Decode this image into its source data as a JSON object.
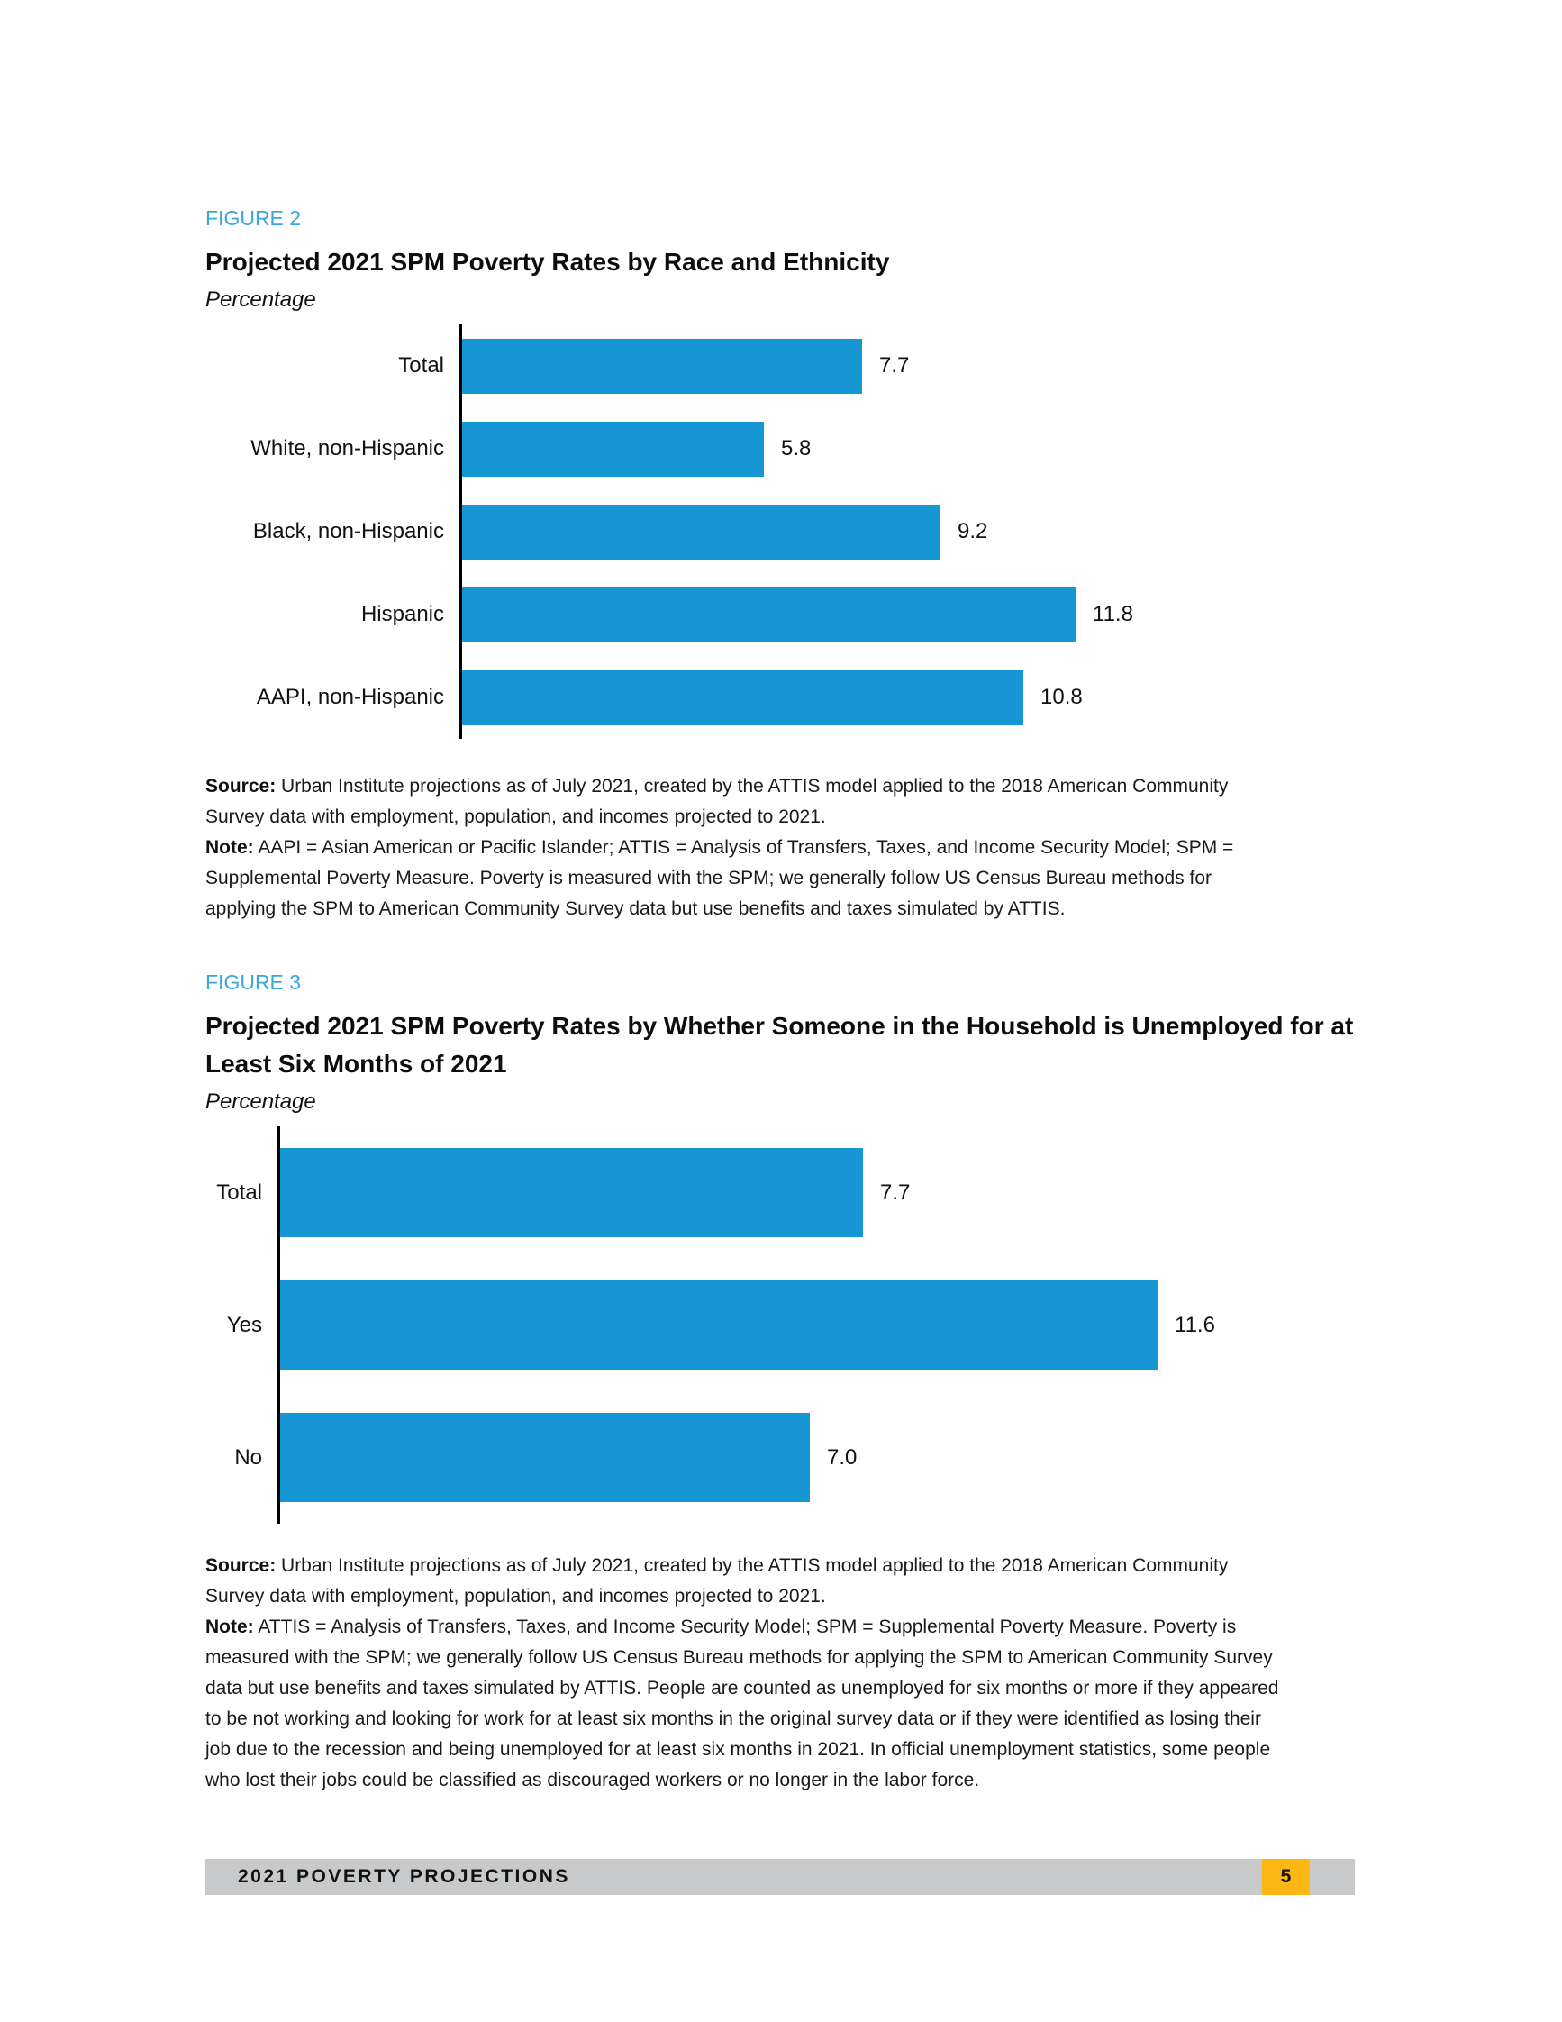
{
  "colors": {
    "bar_blue": "#1696d2",
    "figure_label_blue": "#3ba7dd",
    "footer_gray": "#c8c9ca",
    "page_badge_yellow": "#fdb714",
    "axis_black": "#000000"
  },
  "figures": {
    "fig2": {
      "label": "FIGURE 2",
      "title_lines": [
        "Projected 2021 SPM Poverty Rates by Race and Ethnicity"
      ],
      "subtitle": "Percentage",
      "notes": [
        {
          "b": "Source:",
          "t": " Urban Institute projections as of July 2021, created by the ATTIS model applied to the 2018 American Community"
        },
        {
          "b": "",
          "t": "Survey data with employment, population, and incomes projected to 2021."
        },
        {
          "b": "Note:",
          "t": " AAPI = Asian American or Pacific Islander; ATTIS = Analysis of Transfers, Taxes, and Income Security Model; SPM ="
        },
        {
          "b": "",
          "t": "Supplemental Poverty Measure. Poverty is measured with the SPM; we generally follow US Census Bureau methods for"
        },
        {
          "b": "",
          "t": "applying the SPM to American Community Survey data but use benefits and taxes simulated by ATTIS."
        }
      ]
    },
    "fig3": {
      "label": "FIGURE 3",
      "title_lines": [
        "Projected 2021 SPM Poverty Rates by Whether Someone in the Household is Unemployed for at",
        "Least Six Months of 2021"
      ],
      "subtitle": "Percentage",
      "notes": [
        {
          "b": "Source:",
          "t": " Urban Institute projections as of July 2021, created by the ATTIS model applied to the 2018 American Community"
        },
        {
          "b": "",
          "t": "Survey data with employment, population, and incomes projected to 2021."
        },
        {
          "b": "Note:",
          "t": " ATTIS = Analysis of Transfers, Taxes, and Income Security Model; SPM = Supplemental Poverty Measure. Poverty is"
        },
        {
          "b": "",
          "t": "measured with the SPM; we generally follow US Census Bureau methods for applying the SPM to American Community Survey"
        },
        {
          "b": "",
          "t": "data but use benefits and taxes simulated by ATTIS. People are counted as unemployed for six months or more if they appeared"
        },
        {
          "b": "",
          "t": "to be not working and looking for work for at least six months in the original survey data or if they were identified as losing their"
        },
        {
          "b": "",
          "t": "job due to the recession and being unemployed for at least six months in 2021. In official unemployment statistics, some people"
        },
        {
          "b": "",
          "t": "who lost their jobs could be classified as discouraged workers or no longer in the labor force."
        }
      ]
    }
  },
  "chart_data": [
    {
      "type": "bar",
      "orientation": "horizontal",
      "title": "Projected 2021 SPM Poverty Rates by Race and Ethnicity",
      "subtitle": "Percentage",
      "categories": [
        "Total",
        "White, non-Hispanic",
        "Black, non-Hispanic",
        "Hispanic",
        "AAPI, non-Hispanic"
      ],
      "values": [
        7.7,
        5.8,
        9.2,
        11.8,
        10.8
      ],
      "value_labels": [
        "7.7",
        "5.8",
        "9.2",
        "11.8",
        "10.8"
      ],
      "bar_color": "#1696d2",
      "xlim": [
        0,
        13
      ],
      "grid": false,
      "legend": "none",
      "data_labels": "end-of-bar"
    },
    {
      "type": "bar",
      "orientation": "horizontal",
      "title": "Projected 2021 SPM Poverty Rates by Whether Someone in the Household is Unemployed for at Least Six Months of 2021",
      "subtitle": "Percentage",
      "categories": [
        "Total",
        "Yes",
        "No"
      ],
      "values": [
        7.7,
        11.6,
        7.0
      ],
      "value_labels": [
        "7.7",
        "11.6",
        "7.0"
      ],
      "bar_color": "#1696d2",
      "xlim": [
        0,
        14
      ],
      "grid": false,
      "legend": "none",
      "data_labels": "end-of-bar"
    }
  ],
  "footer": {
    "text": "2021 POVERTY PROJECTIONS",
    "page_number": "5"
  }
}
